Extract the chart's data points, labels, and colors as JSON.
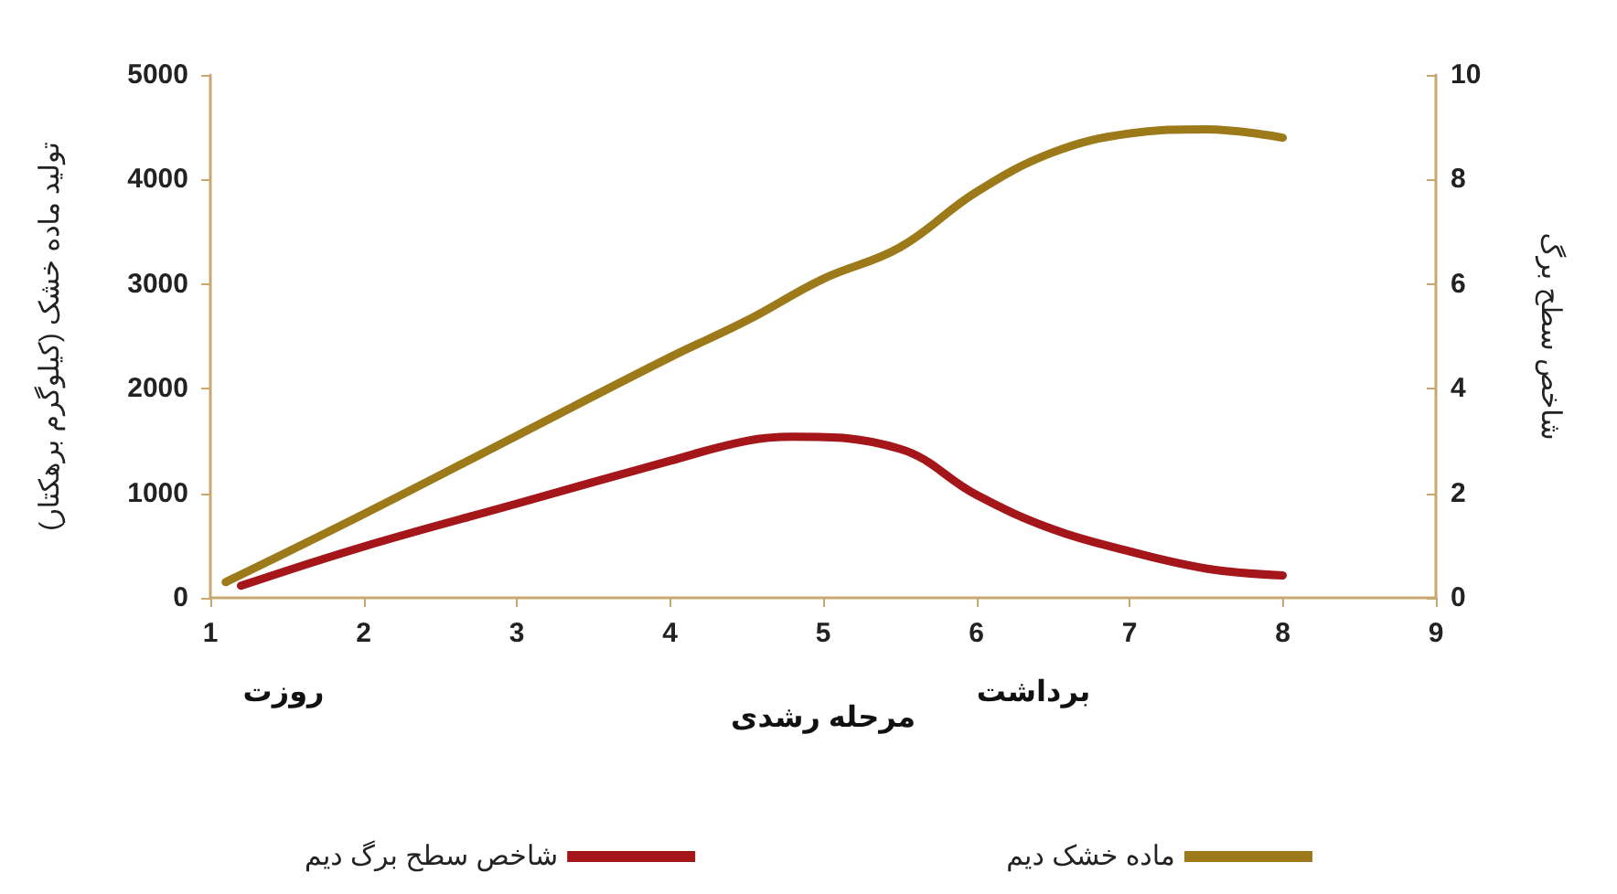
{
  "chart_data": {
    "type": "line",
    "xlabel": "مرحله رشدی",
    "ylabel": "تولید ماده خشک (کیلوگرم برهکتار)",
    "y2label": "شاخص سطح برگ",
    "series": [
      {
        "name": "شاخص سطح برگ دیم",
        "color": "#a4161a",
        "axis": "y2",
        "x": [
          1.2,
          2,
          3,
          4,
          4.5,
          4.8,
          5.5,
          6,
          6.5,
          7,
          7.5,
          8
        ],
        "values": [
          0.23,
          0.98,
          1.8,
          2.62,
          3.0,
          3.08,
          2.85,
          1.97,
          1.31,
          0.89,
          0.56,
          0.43
        ]
      },
      {
        "name": "ماده خشک دیم",
        "color": "#9c7a1a",
        "x": [
          1.1,
          2,
          3,
          4,
          4.5,
          5,
          5.5,
          6,
          6.5,
          7,
          7.5,
          8
        ],
        "values": [
          150,
          800,
          1550,
          2300,
          2650,
          3050,
          3350,
          3880,
          4260,
          4440,
          4480,
          4400
        ]
      }
    ],
    "xlim": [
      1,
      9
    ],
    "xticks": [
      1,
      2,
      3,
      4,
      5,
      6,
      7,
      8,
      9
    ],
    "ylim": [
      0,
      5000
    ],
    "yticks": [
      0,
      1000,
      2000,
      3000,
      4000,
      5000
    ],
    "y2lim": [
      0,
      10
    ],
    "y2ticks": [
      0,
      2,
      4,
      6,
      8,
      10
    ],
    "annotations": [
      "روزت",
      "برداشت"
    ],
    "grid": false,
    "legend": "bottom",
    "marker": "none",
    "line_style": "solid"
  }
}
